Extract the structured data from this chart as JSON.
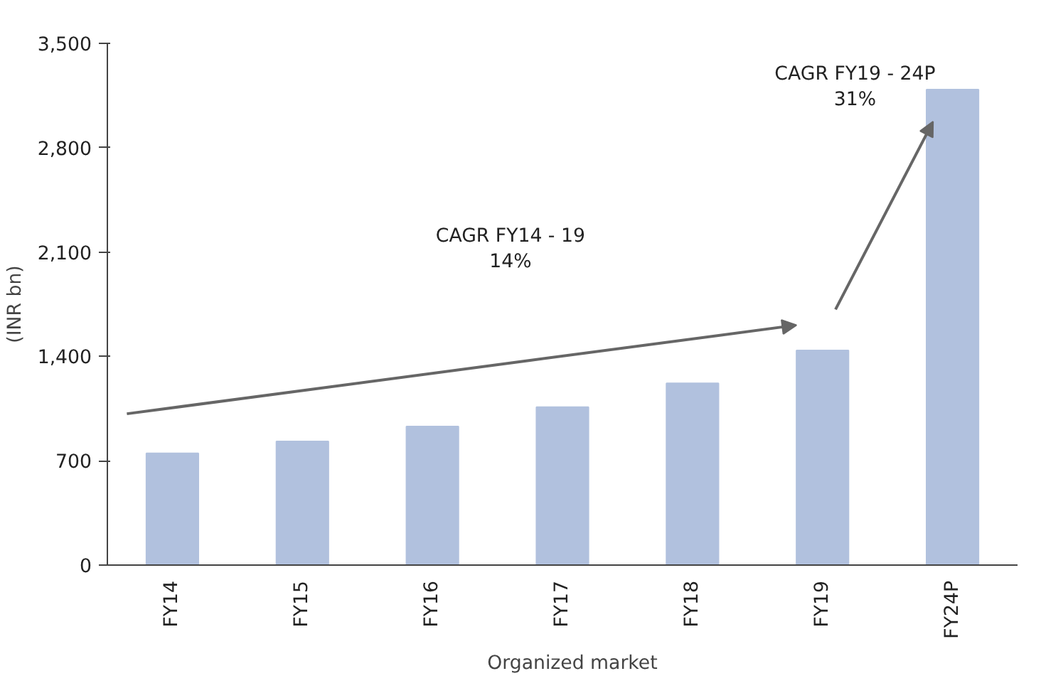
{
  "chart_data": {
    "type": "bar",
    "ylabel": "(INR bn)",
    "categories": [
      "FY14",
      "FY15",
      "FY16",
      "FY17",
      "FY18",
      "FY19",
      "FY24P"
    ],
    "series": [
      {
        "name": "Organized market",
        "color": "#b1c1de",
        "values": [
          750,
          830,
          930,
          1060,
          1220,
          1440,
          3190
        ]
      }
    ],
    "ylim": [
      0,
      3500
    ],
    "yticks": [
      {
        "value": 0,
        "label": "0"
      },
      {
        "value": 700,
        "label": "700"
      },
      {
        "value": 1400,
        "label": "1,400"
      },
      {
        "value": 2100,
        "label": "2,100"
      },
      {
        "value": 2800,
        "label": "2,800"
      },
      {
        "value": 3500,
        "label": "3,500"
      }
    ],
    "annotations": [
      "CAGR FY14 - 19\n14%",
      "CAGR FY19 - 24P\n31%"
    ],
    "grid": false,
    "legend": "bottom"
  }
}
